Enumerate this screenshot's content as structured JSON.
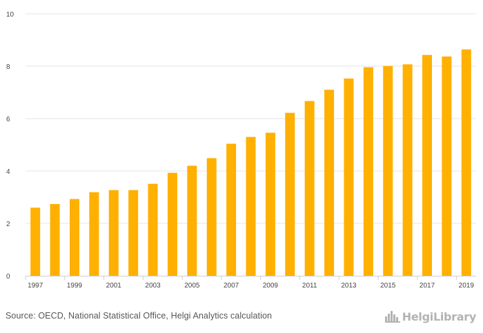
{
  "chart_data": {
    "type": "bar",
    "categories": [
      "1997",
      "1998",
      "1999",
      "2000",
      "2001",
      "2002",
      "2003",
      "2004",
      "2005",
      "2006",
      "2007",
      "2008",
      "2009",
      "2010",
      "2011",
      "2012",
      "2013",
      "2014",
      "2015",
      "2016",
      "2017",
      "2018",
      "2019"
    ],
    "x_tick_labels": [
      "1997",
      "1999",
      "2001",
      "2003",
      "2005",
      "2007",
      "2009",
      "2011",
      "2013",
      "2015",
      "2017",
      "2019"
    ],
    "values": [
      2.6,
      2.74,
      2.93,
      3.19,
      3.27,
      3.27,
      3.51,
      3.93,
      4.2,
      4.49,
      5.04,
      5.3,
      5.46,
      6.22,
      6.67,
      7.1,
      7.53,
      7.96,
      8.01,
      8.07,
      8.43,
      8.37,
      8.64
    ],
    "ylim": [
      0,
      10
    ],
    "y_ticks": [
      0,
      2,
      4,
      6,
      8,
      10
    ],
    "title": "",
    "xlabel": "",
    "ylabel": "",
    "grid": true,
    "bar_color": "#FFB000",
    "grid_color": "#e6e6e6",
    "axis_color": "#cfcfcf",
    "tick_text_color": "#444444"
  },
  "footer": {
    "source": "Source: OECD, National Statistical Office, Helgi Analytics calculation",
    "logo_text": "HelgiLibrary",
    "logo_icon": "city-skyline-icon"
  }
}
